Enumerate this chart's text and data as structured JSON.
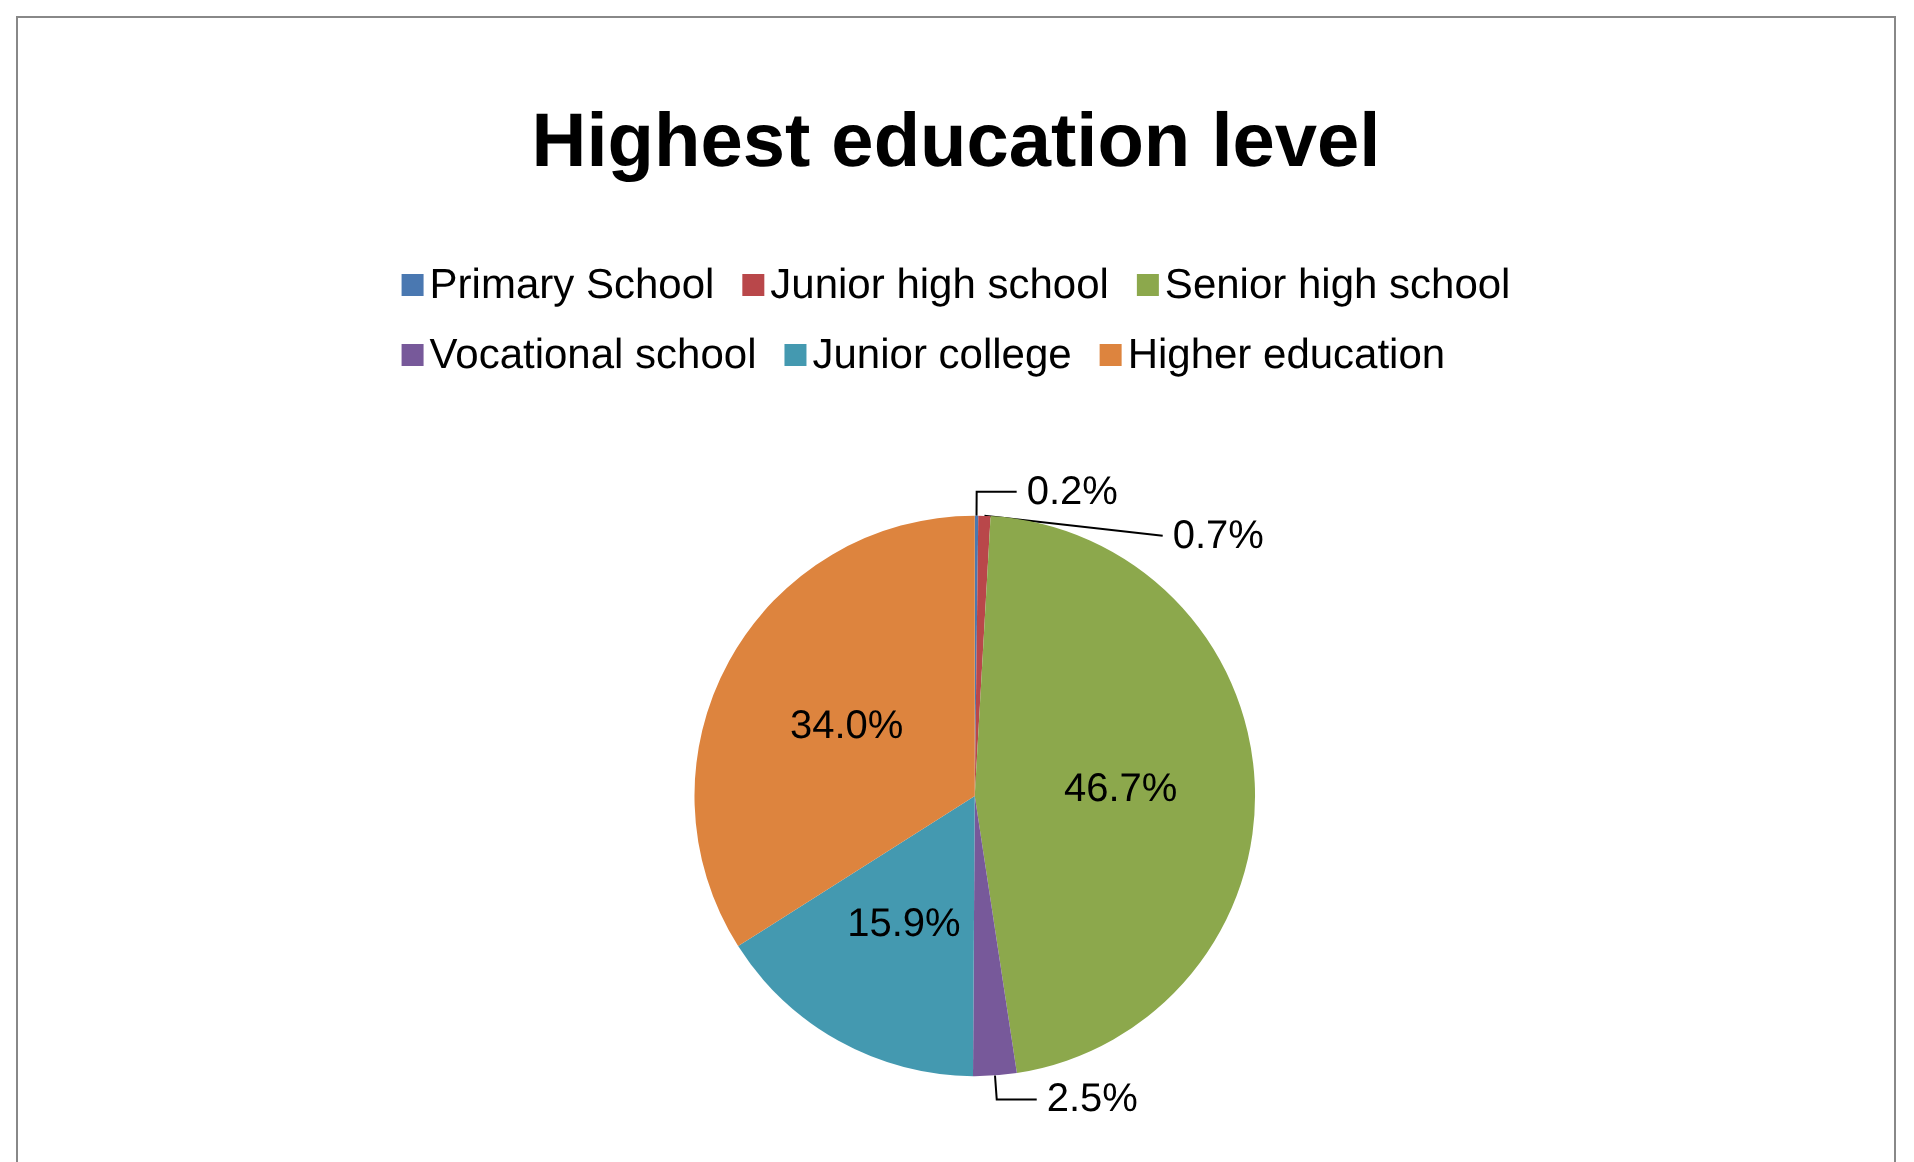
{
  "chart_data": {
    "type": "pie",
    "title": "Highest education level",
    "categories": [
      "Primary School",
      "Junior high school",
      "Senior high school",
      "Vocational school",
      "Junior college",
      "Higher education"
    ],
    "values": [
      0.2,
      0.7,
      46.7,
      2.5,
      15.9,
      34.0
    ],
    "value_labels": [
      "0.2%",
      "0.7%",
      "46.7%",
      "2.5%",
      "15.9%",
      "34.0%"
    ],
    "colors": [
      "#4a78b1",
      "#b9474a",
      "#8ca84c",
      "#77599a",
      "#4499b0",
      "#dd843e"
    ],
    "legend": "top"
  }
}
